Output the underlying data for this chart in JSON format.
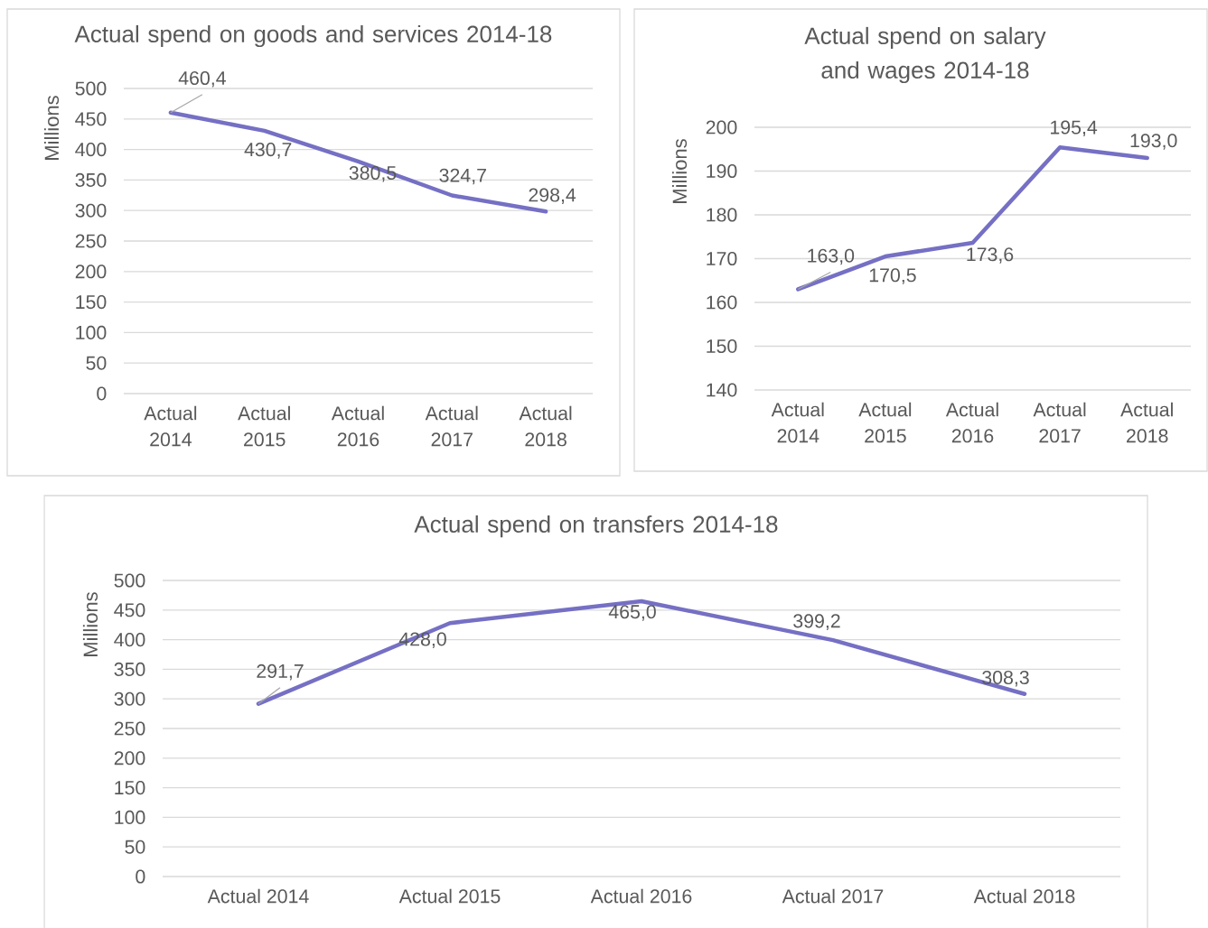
{
  "chart_data": [
    {
      "type": "line",
      "title": "Actual spend on goods and services 2014-18",
      "ylabel": "Millions",
      "categories": [
        "Actual 2014",
        "Actual 2015",
        "Actual 2016",
        "Actual 2017",
        "Actual 2018"
      ],
      "values": [
        460.4,
        430.7,
        380.5,
        324.7,
        298.4
      ],
      "value_labels": [
        "460,4",
        "430,7",
        "380,5",
        "324,7",
        "298,4"
      ],
      "color": "#7570c4",
      "ylim": [
        0,
        500
      ],
      "yticks": [
        0,
        50,
        100,
        150,
        200,
        250,
        300,
        350,
        400,
        450,
        500
      ],
      "grid": "y"
    },
    {
      "type": "line",
      "title": "Actual spend on salary and wages 2014-18",
      "ylabel": "Millions",
      "categories": [
        "Actual 2014",
        "Actual 2015",
        "Actual 2016",
        "Actual 2017",
        "Actual 2018"
      ],
      "values": [
        163.0,
        170.5,
        173.6,
        195.4,
        193.0
      ],
      "value_labels": [
        "163,0",
        "170,5",
        "173,6",
        "195,4",
        "193,0"
      ],
      "color": "#7570c4",
      "ylim": [
        140,
        200
      ],
      "yticks": [
        140,
        150,
        160,
        170,
        180,
        190,
        200
      ],
      "grid": "y"
    },
    {
      "type": "line",
      "title": "Actual spend on transfers 2014-18",
      "ylabel": "Millions",
      "categories": [
        "Actual 2014",
        "Actual 2015",
        "Actual 2016",
        "Actual 2017",
        "Actual 2018"
      ],
      "values": [
        291.7,
        428.0,
        465.0,
        399.2,
        308.3
      ],
      "value_labels": [
        "291,7",
        "428,0",
        "465,0",
        "399,2",
        "308,3"
      ],
      "color": "#7570c4",
      "ylim": [
        0,
        500
      ],
      "yticks": [
        0,
        50,
        100,
        150,
        200,
        250,
        300,
        350,
        400,
        450,
        500
      ],
      "grid": "y"
    }
  ]
}
